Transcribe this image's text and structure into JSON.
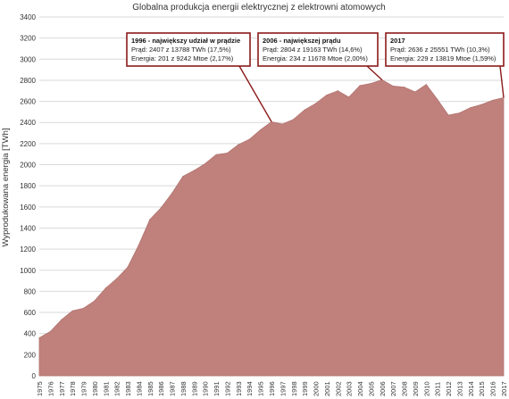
{
  "chart_data": {
    "type": "area",
    "title": "Globalna produkcja energii elektrycznej z elektrowni atomowych",
    "ylabel": "Wyprodukowana energia [TWh]",
    "xlabel": "",
    "ylim": [
      0,
      3400
    ],
    "yticks": [
      0,
      200,
      400,
      600,
      800,
      1000,
      1200,
      1400,
      1600,
      1800,
      2000,
      2200,
      2400,
      2600,
      2800,
      3000,
      3200,
      3400
    ],
    "grid": true,
    "color": "#c0807c",
    "categories": [
      "1975",
      "1976",
      "1977",
      "1978",
      "1979",
      "1980",
      "1981",
      "1982",
      "1983",
      "1984",
      "1985",
      "1986",
      "1987",
      "1988",
      "1989",
      "1990",
      "1991",
      "1992",
      "1993",
      "1994",
      "1995",
      "1996",
      "1997",
      "1998",
      "1999",
      "2000",
      "2001",
      "2002",
      "2003",
      "2004",
      "2005",
      "2006",
      "2007",
      "2008",
      "2009",
      "2010",
      "2011",
      "2012",
      "2013",
      "2014",
      "2015",
      "2016",
      "2017"
    ],
    "values": [
      360,
      420,
      530,
      615,
      640,
      710,
      830,
      920,
      1030,
      1240,
      1480,
      1590,
      1730,
      1890,
      1945,
      2010,
      2095,
      2110,
      2190,
      2240,
      2330,
      2407,
      2385,
      2430,
      2520,
      2580,
      2660,
      2700,
      2640,
      2750,
      2770,
      2804,
      2745,
      2735,
      2690,
      2760,
      2620,
      2470,
      2490,
      2540,
      2570,
      2610,
      2636
    ],
    "annotations": [
      {
        "year": "1996",
        "heading": "1996 - największy udział w prądzie",
        "line1": "Prąd: 2407 z 13788 TWh (17,5%)",
        "line2": "Energia: 201 z 9242 Mtoe (2,17%)"
      },
      {
        "year": "2006",
        "heading": "2006 - największej prądu",
        "line1": "Prąd: 2804 z 19163 TWh (14,6%)",
        "line2": "Energia: 234 z 11678 Mtoe (2,00%)"
      },
      {
        "year": "2017",
        "heading": "2017",
        "line1": "Prąd: 2636 z 25551 TWh (10,3%)",
        "line2": "Energia: 229 z 13819 Mtoe (1,59%)"
      }
    ]
  }
}
